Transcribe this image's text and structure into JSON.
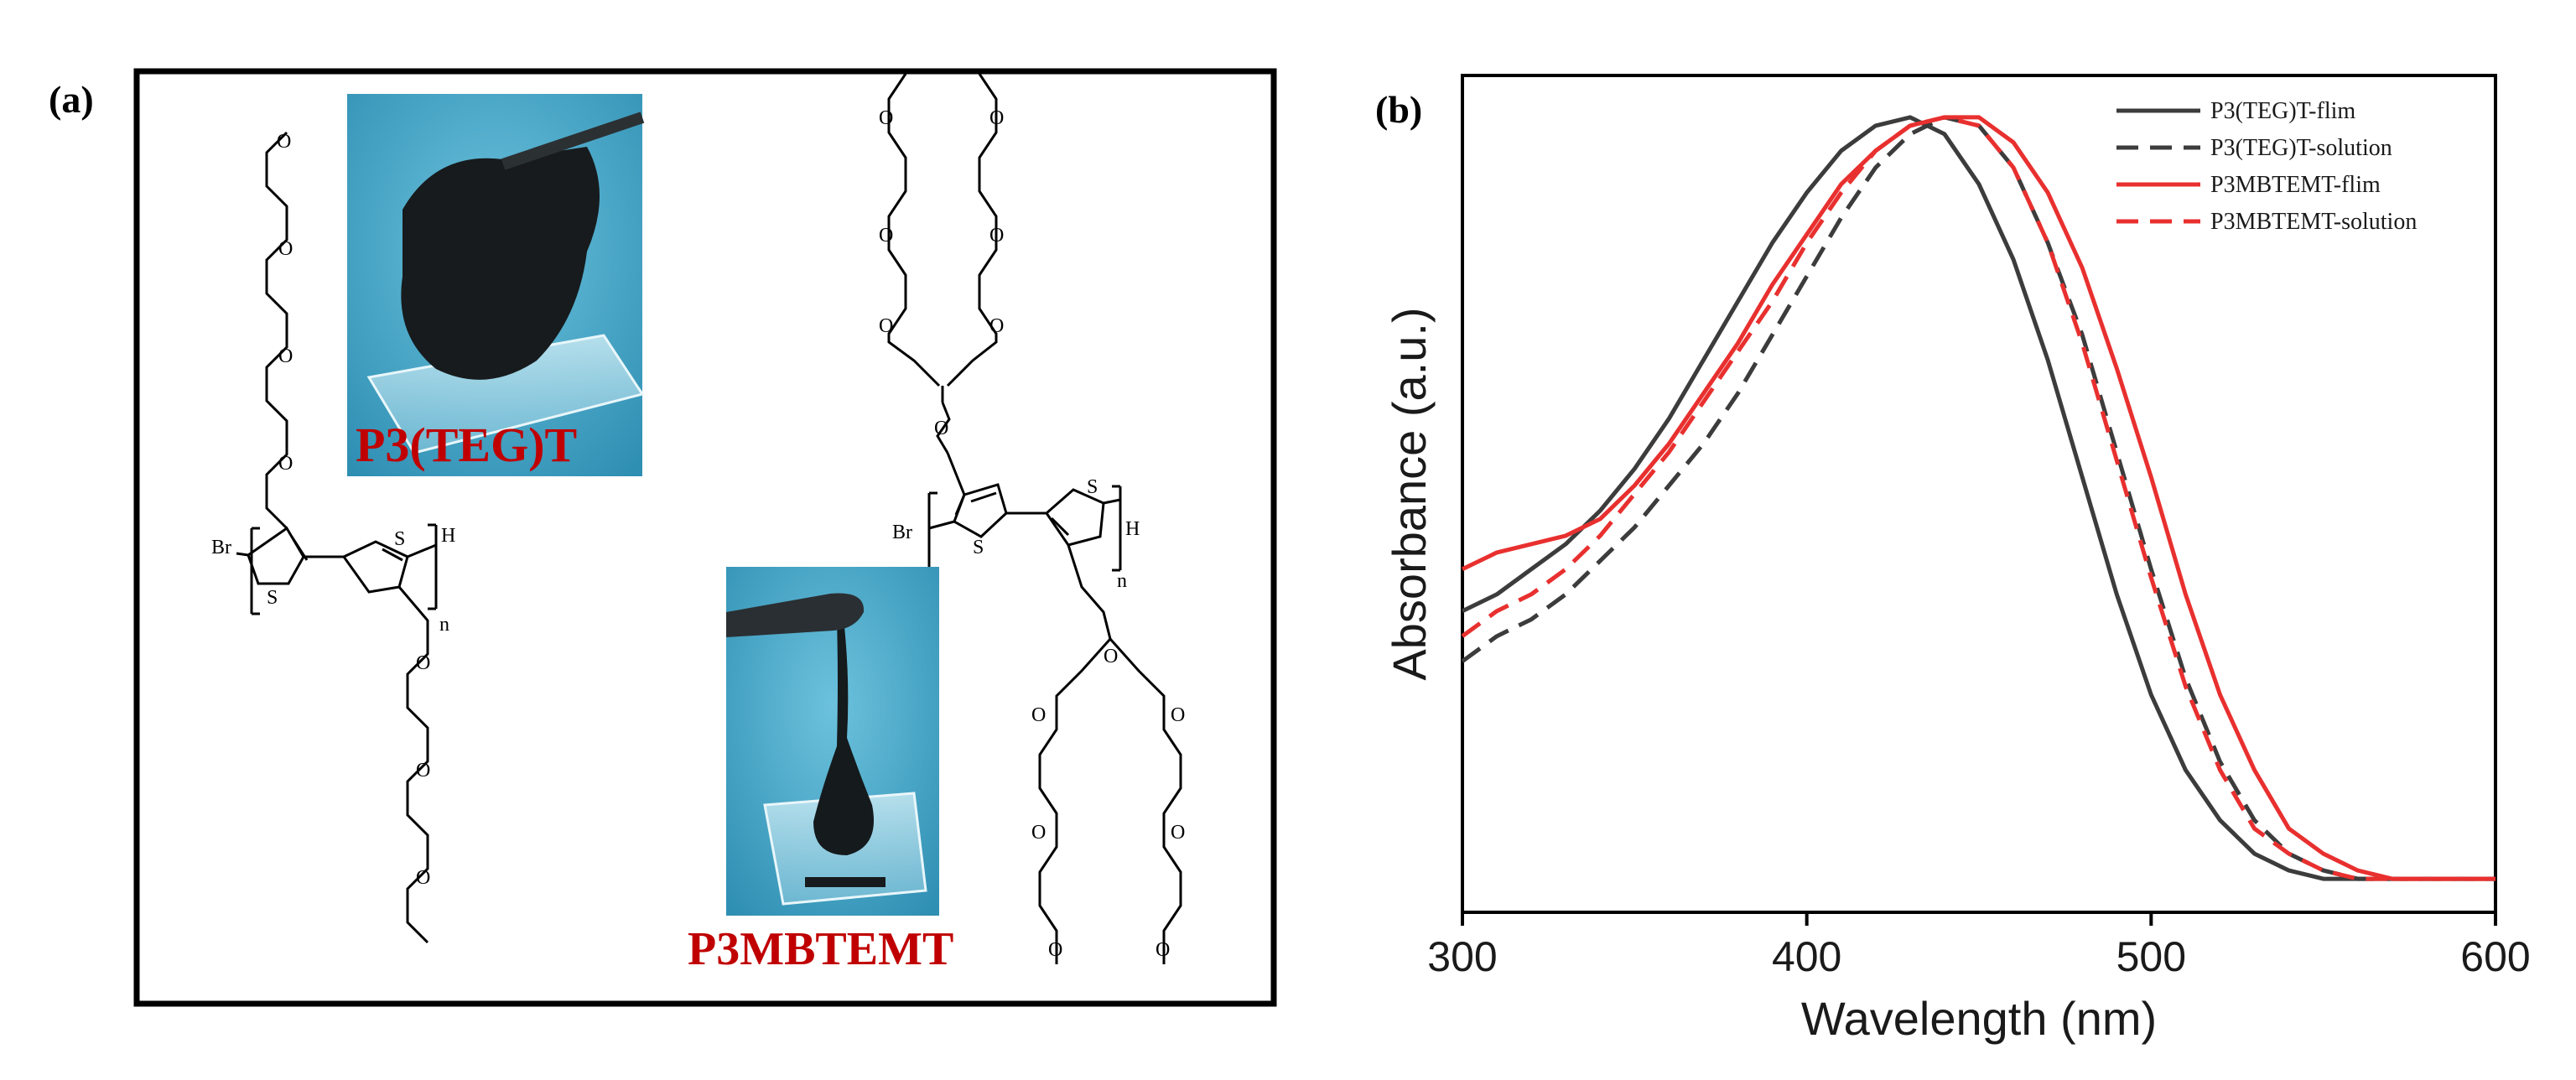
{
  "panel_a": {
    "label": "(a)",
    "molecule1": {
      "photo_caption": "P3(TEG)T",
      "end_left": "Br",
      "end_right": "H",
      "repeat": "n",
      "ring_atom": "S",
      "ether_atom": "O"
    },
    "molecule2": {
      "photo_caption": "P3MBTEMT",
      "end_left": "Br",
      "end_right": "H",
      "repeat": "n",
      "ring_atom": "S",
      "ether_atom": "O"
    },
    "colors": {
      "caption": "#c00000",
      "photo_bg": "#3aa1c4",
      "polymer": "#151a1c"
    }
  },
  "chart_data": {
    "panel_label": "(b)",
    "type": "line",
    "xlabel": "Wavelength (nm)",
    "ylabel": "Absorbance (a.u.)",
    "xlim": [
      300,
      600
    ],
    "ylim": [
      0,
      1.0
    ],
    "xticks": [
      300,
      400,
      500,
      600
    ],
    "yticks_labeled": false,
    "grid": false,
    "legend_position": "top-right",
    "series": [
      {
        "name": "P3(TEG)T-flim",
        "color": "#3c3c3c",
        "dash": "solid",
        "x": [
          300,
          310,
          320,
          330,
          340,
          350,
          360,
          370,
          380,
          390,
          400,
          410,
          420,
          430,
          440,
          450,
          460,
          470,
          480,
          490,
          500,
          510,
          520,
          530,
          540,
          550,
          560,
          570,
          580,
          590,
          600
        ],
        "y": [
          0.36,
          0.38,
          0.41,
          0.44,
          0.48,
          0.53,
          0.59,
          0.66,
          0.73,
          0.8,
          0.86,
          0.91,
          0.94,
          0.95,
          0.93,
          0.87,
          0.78,
          0.66,
          0.52,
          0.38,
          0.26,
          0.17,
          0.11,
          0.07,
          0.05,
          0.04,
          0.04,
          0.04,
          0.04,
          0.04,
          0.04
        ]
      },
      {
        "name": "P3(TEG)T-solution",
        "color": "#3c3c3c",
        "dash": "dashed",
        "x": [
          300,
          310,
          320,
          330,
          340,
          350,
          360,
          370,
          380,
          390,
          400,
          410,
          420,
          430,
          440,
          450,
          460,
          470,
          480,
          490,
          500,
          510,
          520,
          530,
          540,
          550,
          560,
          570,
          580,
          590,
          600
        ],
        "y": [
          0.3,
          0.33,
          0.35,
          0.38,
          0.42,
          0.46,
          0.51,
          0.56,
          0.62,
          0.69,
          0.76,
          0.83,
          0.89,
          0.93,
          0.95,
          0.94,
          0.89,
          0.8,
          0.69,
          0.55,
          0.41,
          0.28,
          0.18,
          0.11,
          0.07,
          0.05,
          0.04,
          0.04,
          0.04,
          0.04,
          0.04
        ]
      },
      {
        "name": "P3MBTEMT-flim",
        "color": "#e8302f",
        "dash": "solid",
        "x": [
          300,
          310,
          320,
          330,
          340,
          350,
          360,
          370,
          380,
          390,
          400,
          410,
          420,
          430,
          440,
          450,
          460,
          470,
          480,
          490,
          500,
          510,
          520,
          530,
          540,
          550,
          560,
          570,
          580,
          590,
          600
        ],
        "y": [
          0.41,
          0.43,
          0.44,
          0.45,
          0.47,
          0.51,
          0.56,
          0.62,
          0.68,
          0.75,
          0.81,
          0.87,
          0.91,
          0.94,
          0.95,
          0.95,
          0.92,
          0.86,
          0.77,
          0.65,
          0.52,
          0.38,
          0.26,
          0.17,
          0.1,
          0.07,
          0.05,
          0.04,
          0.04,
          0.04,
          0.04
        ]
      },
      {
        "name": "P3MBTEMT-solution",
        "color": "#e8302f",
        "dash": "dashed",
        "x": [
          300,
          310,
          320,
          330,
          340,
          350,
          360,
          370,
          380,
          390,
          400,
          410,
          420,
          430,
          440,
          450,
          460,
          470,
          480,
          490,
          500,
          510,
          520,
          530,
          540,
          550,
          560,
          570,
          580,
          590,
          600
        ],
        "y": [
          0.33,
          0.36,
          0.38,
          0.41,
          0.45,
          0.5,
          0.55,
          0.61,
          0.67,
          0.73,
          0.8,
          0.86,
          0.91,
          0.94,
          0.95,
          0.94,
          0.89,
          0.8,
          0.68,
          0.54,
          0.4,
          0.27,
          0.17,
          0.1,
          0.07,
          0.05,
          0.04,
          0.04,
          0.04,
          0.04,
          0.04
        ]
      }
    ]
  }
}
